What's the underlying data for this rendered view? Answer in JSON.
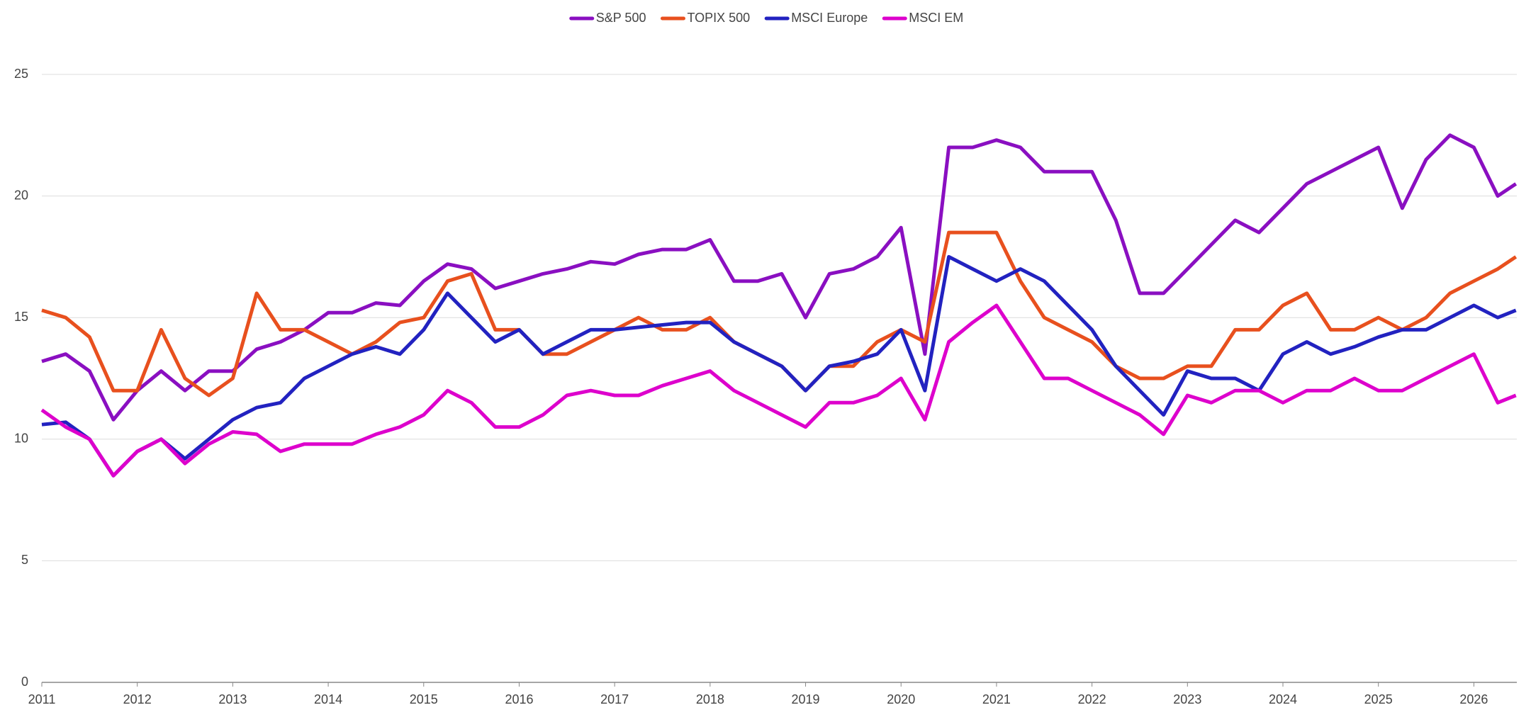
{
  "chart_data": {
    "type": "line",
    "x": [
      2011,
      2011.25,
      2011.5,
      2011.75,
      2012,
      2012.25,
      2012.5,
      2012.75,
      2013,
      2013.25,
      2013.5,
      2013.75,
      2014,
      2014.25,
      2014.5,
      2014.75,
      2015,
      2015.25,
      2015.5,
      2015.75,
      2016,
      2016.25,
      2016.5,
      2016.75,
      2017,
      2017.25,
      2017.5,
      2017.75,
      2018,
      2018.25,
      2018.5,
      2018.75,
      2019,
      2019.25,
      2019.5,
      2019.75,
      2020,
      2020.25,
      2020.5,
      2020.75,
      2021,
      2021.25,
      2021.5,
      2021.75,
      2022,
      2022.25,
      2022.5,
      2022.75,
      2023,
      2023.25,
      2023.5,
      2023.75,
      2024,
      2024.25,
      2024.5,
      2024.75,
      2025,
      2025.25,
      2025.5,
      2025.75,
      2026,
      2026.25,
      2026.44
    ],
    "series": [
      {
        "name": "S&P 500",
        "color": "#8a0fc1",
        "values": [
          13.2,
          13.5,
          12.8,
          10.8,
          12.0,
          12.8,
          12.0,
          12.8,
          12.8,
          13.7,
          14.0,
          14.5,
          15.2,
          15.2,
          15.6,
          15.5,
          16.5,
          17.2,
          17.0,
          16.2,
          16.5,
          16.8,
          17.0,
          17.3,
          17.2,
          17.6,
          17.8,
          17.8,
          18.2,
          16.5,
          16.5,
          16.8,
          15.0,
          16.8,
          17.0,
          17.5,
          18.7,
          13.5,
          22.0,
          22.0,
          22.3,
          22.0,
          21.0,
          21.0,
          21.0,
          19.0,
          16.0,
          16.0,
          17.0,
          18.0,
          19.0,
          18.5,
          19.5,
          20.5,
          21.0,
          21.5,
          22.0,
          19.5,
          21.5,
          22.5,
          22.0,
          20.0,
          20.5
        ]
      },
      {
        "name": "TOPIX 500",
        "color": "#e8501e",
        "values": [
          15.3,
          15.0,
          14.2,
          12.0,
          12.0,
          14.5,
          12.5,
          11.8,
          12.5,
          16.0,
          14.5,
          14.5,
          14.0,
          13.5,
          14.0,
          14.8,
          15.0,
          16.5,
          16.8,
          14.5,
          14.5,
          13.5,
          13.5,
          14.0,
          14.5,
          15.0,
          14.5,
          14.5,
          15.0,
          14.0,
          13.5,
          13.0,
          12.0,
          13.0,
          13.0,
          14.0,
          14.5,
          14.0,
          18.5,
          18.5,
          18.5,
          16.5,
          15.0,
          14.5,
          14.0,
          13.0,
          12.5,
          12.5,
          13.0,
          13.0,
          14.5,
          14.5,
          15.5,
          16.0,
          14.5,
          14.5,
          15.0,
          14.5,
          15.0,
          16.0,
          16.5,
          17.0,
          17.5
        ]
      },
      {
        "name": "MSCI Europe",
        "color": "#2222c0",
        "values": [
          10.6,
          10.7,
          10.0,
          8.5,
          9.5,
          10.0,
          9.2,
          10.0,
          10.8,
          11.3,
          11.5,
          12.5,
          13.0,
          13.5,
          13.8,
          13.5,
          14.5,
          16.0,
          15.0,
          14.0,
          14.5,
          13.5,
          14.0,
          14.5,
          14.5,
          14.6,
          14.7,
          14.8,
          14.8,
          14.0,
          13.5,
          13.0,
          12.0,
          13.0,
          13.2,
          13.5,
          14.5,
          12.0,
          17.5,
          17.0,
          16.5,
          17.0,
          16.5,
          15.5,
          14.5,
          13.0,
          12.0,
          11.0,
          12.8,
          12.5,
          12.5,
          12.0,
          13.5,
          14.0,
          13.5,
          13.8,
          14.2,
          14.5,
          14.5,
          15.0,
          15.5,
          15.0,
          15.3
        ]
      },
      {
        "name": "MSCI EM",
        "color": "#dd00cc",
        "values": [
          11.2,
          10.5,
          10.0,
          8.5,
          9.5,
          10.0,
          9.0,
          9.8,
          10.3,
          10.2,
          9.5,
          9.8,
          9.8,
          9.8,
          10.2,
          10.5,
          11.0,
          12.0,
          11.5,
          10.5,
          10.5,
          11.0,
          11.8,
          12.0,
          11.8,
          11.8,
          12.2,
          12.5,
          12.8,
          12.0,
          11.5,
          11.0,
          10.5,
          11.5,
          11.5,
          11.8,
          12.5,
          10.8,
          14.0,
          14.8,
          15.5,
          14.0,
          12.5,
          12.5,
          12.0,
          11.5,
          11.0,
          10.2,
          11.8,
          11.5,
          12.0,
          12.0,
          11.5,
          12.0,
          12.0,
          12.5,
          12.0,
          12.0,
          12.5,
          13.0,
          13.5,
          11.5,
          11.8
        ]
      }
    ],
    "xlim": [
      2011,
      2026.45
    ],
    "xticks": [
      2011,
      2012,
      2013,
      2014,
      2015,
      2016,
      2017,
      2018,
      2019,
      2020,
      2021,
      2022,
      2023,
      2024,
      2025,
      2026
    ],
    "ylim": [
      0,
      25
    ],
    "yticks": [
      0,
      5,
      10,
      15,
      20,
      25
    ],
    "grid": true,
    "legend": "top"
  }
}
